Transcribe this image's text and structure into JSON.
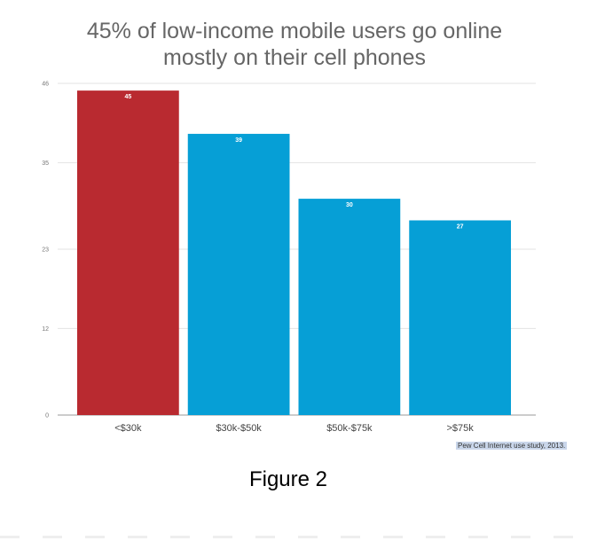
{
  "chart_data": {
    "type": "bar",
    "title_lines": [
      "45% of low-income mobile users go online",
      "mostly on their cell phones"
    ],
    "categories": [
      "<$30k",
      "$30k-$50k",
      "$50k-$75k",
      ">$75k"
    ],
    "values": [
      45,
      39,
      30,
      27
    ],
    "value_labels": [
      "45",
      "39",
      "30",
      "27"
    ],
    "yticks": [
      "0",
      "12",
      "23",
      "35",
      "46"
    ],
    "ylim": [
      0,
      46
    ],
    "grid": true,
    "colors": [
      "#b92a30",
      "#069fd6",
      "#069fd6",
      "#069fd6"
    ],
    "source": "Pew Cell Internet use study, 2013."
  },
  "caption": "Figure 2"
}
